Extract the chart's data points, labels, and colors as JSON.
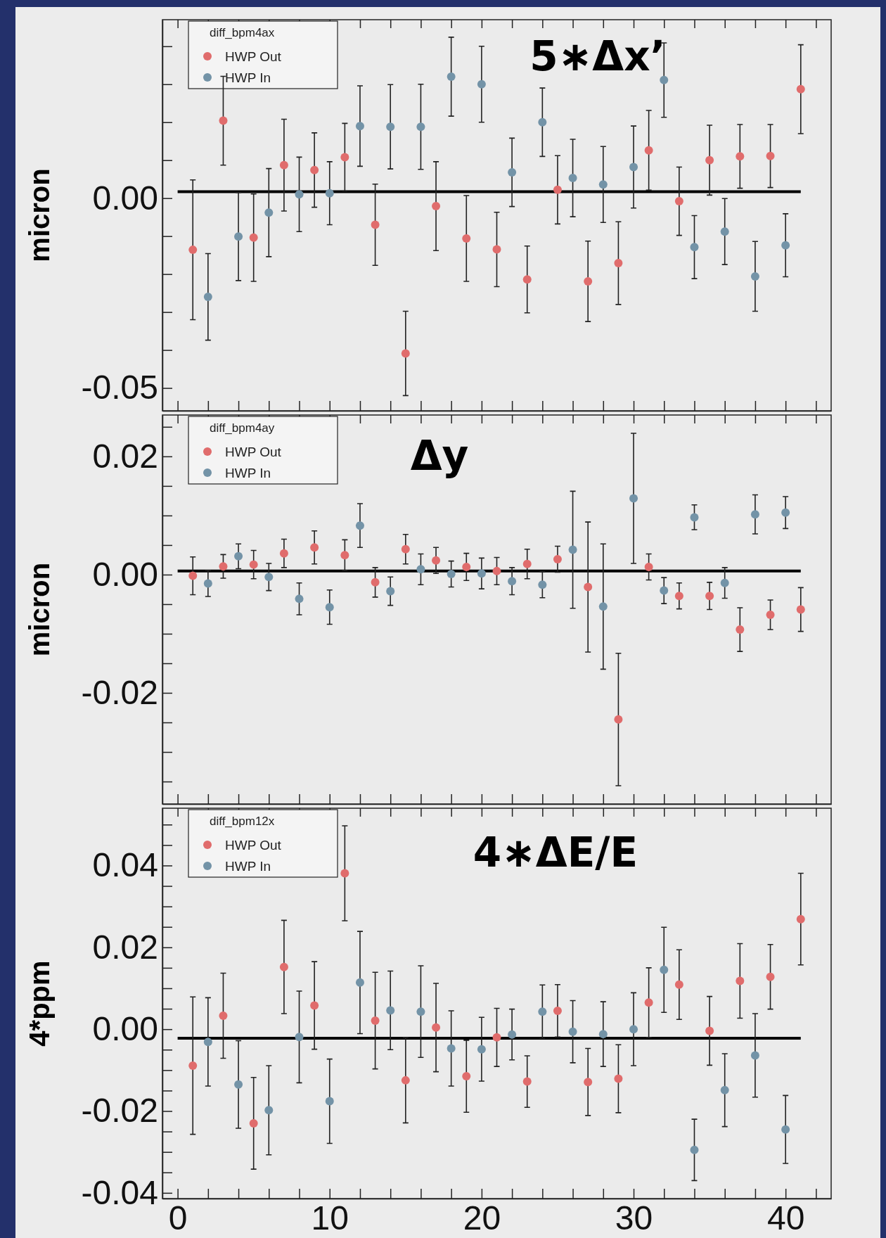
{
  "chart_data": [
    {
      "type": "scatter",
      "title": "5∗Δx’",
      "ylabel": "micron",
      "legend_title": "diff_bpm4ax",
      "legend": "top left",
      "marker": "circle",
      "grid": false,
      "tick_labels": "y",
      "xlim": [
        -1,
        43
      ],
      "ylim": [
        -0.056,
        0.047
      ],
      "xticks": [
        {
          "value": 0,
          "label": null
        },
        {
          "value": 2,
          "label": null
        },
        {
          "value": 4,
          "label": null
        },
        {
          "value": 6,
          "label": null
        },
        {
          "value": 8,
          "label": null
        },
        {
          "value": 10,
          "label": null
        },
        {
          "value": 12,
          "label": null
        },
        {
          "value": 14,
          "label": null
        },
        {
          "value": 16,
          "label": null
        },
        {
          "value": 18,
          "label": null
        },
        {
          "value": 20,
          "label": null
        },
        {
          "value": 22,
          "label": null
        },
        {
          "value": 24,
          "label": null
        },
        {
          "value": 26,
          "label": null
        },
        {
          "value": 28,
          "label": null
        },
        {
          "value": 30,
          "label": null
        },
        {
          "value": 32,
          "label": null
        },
        {
          "value": 34,
          "label": null
        },
        {
          "value": 36,
          "label": null
        },
        {
          "value": 38,
          "label": null
        },
        {
          "value": 40,
          "label": null
        },
        {
          "value": 42,
          "label": null
        }
      ],
      "yticks": [
        {
          "value": -0.05,
          "label": "-0.05"
        },
        {
          "value": -0.04,
          "label": null
        },
        {
          "value": -0.03,
          "label": null
        },
        {
          "value": -0.02,
          "label": null
        },
        {
          "value": -0.01,
          "label": null
        },
        {
          "value": 0,
          "label": "0.00"
        },
        {
          "value": 0.01,
          "label": null
        },
        {
          "value": 0.02,
          "label": null
        },
        {
          "value": 0.03,
          "label": null
        },
        {
          "value": 0.04,
          "label": null
        }
      ],
      "ref_lines": [
        {
          "axis": "y",
          "value": 0.0017,
          "color": "#000000"
        }
      ],
      "series": [
        {
          "name": "HWP Out",
          "color": "#e06c6c",
          "x": [
            1,
            3,
            5,
            7,
            9,
            11,
            13,
            15,
            17,
            19,
            21,
            23,
            25,
            27,
            29,
            31,
            33,
            35,
            37,
            39,
            41
          ],
          "values": [
            -0.0136,
            0.0204,
            -0.0104,
            0.0087,
            0.0074,
            0.0108,
            -0.007,
            -0.0409,
            -0.0021,
            -0.0106,
            -0.0135,
            -0.0214,
            0.0022,
            -0.0219,
            -0.0171,
            0.0126,
            -0.0008,
            0.01,
            0.011,
            0.0111,
            0.0287
          ],
          "errors": [
            0.0184,
            0.0117,
            0.0115,
            0.0121,
            0.0098,
            0.0089,
            0.0107,
            0.0111,
            0.0117,
            0.0113,
            0.0098,
            0.0088,
            0.009,
            0.0106,
            0.0109,
            0.0105,
            0.009,
            0.0092,
            0.0084,
            0.0083,
            0.0117
          ]
        },
        {
          "name": "HWP In",
          "color": "#7393a7",
          "x": [
            2,
            4,
            6,
            8,
            10,
            12,
            14,
            16,
            18,
            20,
            22,
            24,
            26,
            28,
            30,
            32,
            34,
            36,
            38,
            40
          ],
          "values": [
            -0.026,
            -0.0101,
            -0.0038,
            0.001,
            0.0013,
            0.019,
            0.0188,
            0.0188,
            0.032,
            0.03,
            0.0068,
            0.02,
            0.0053,
            0.0036,
            0.0082,
            0.0311,
            -0.0129,
            -0.0088,
            -0.0206,
            -0.0124
          ],
          "errors": [
            0.0114,
            0.0116,
            0.0116,
            0.0098,
            0.0083,
            0.0106,
            0.0111,
            0.0112,
            0.0104,
            0.01,
            0.009,
            0.009,
            0.0102,
            0.01,
            0.0108,
            0.0098,
            0.0083,
            0.0087,
            0.0092,
            0.0083
          ]
        }
      ]
    },
    {
      "type": "scatter",
      "title": "Δy",
      "ylabel": "micron",
      "legend_title": "diff_bpm4ay",
      "legend": "top left",
      "marker": "circle",
      "grid": false,
      "tick_labels": "y",
      "xlim": [
        -1,
        43
      ],
      "ylim": [
        -0.0388,
        0.027
      ],
      "xticks": [
        {
          "value": 0,
          "label": null
        },
        {
          "value": 2,
          "label": null
        },
        {
          "value": 4,
          "label": null
        },
        {
          "value": 6,
          "label": null
        },
        {
          "value": 8,
          "label": null
        },
        {
          "value": 10,
          "label": null
        },
        {
          "value": 12,
          "label": null
        },
        {
          "value": 14,
          "label": null
        },
        {
          "value": 16,
          "label": null
        },
        {
          "value": 18,
          "label": null
        },
        {
          "value": 20,
          "label": null
        },
        {
          "value": 22,
          "label": null
        },
        {
          "value": 24,
          "label": null
        },
        {
          "value": 26,
          "label": null
        },
        {
          "value": 28,
          "label": null
        },
        {
          "value": 30,
          "label": null
        },
        {
          "value": 32,
          "label": null
        },
        {
          "value": 34,
          "label": null
        },
        {
          "value": 36,
          "label": null
        },
        {
          "value": 38,
          "label": null
        },
        {
          "value": 40,
          "label": null
        },
        {
          "value": 42,
          "label": null
        }
      ],
      "yticks": [
        {
          "value": -0.035,
          "label": null
        },
        {
          "value": -0.03,
          "label": null
        },
        {
          "value": -0.025,
          "label": null
        },
        {
          "value": -0.02,
          "label": "-0.02"
        },
        {
          "value": -0.015,
          "label": null
        },
        {
          "value": -0.01,
          "label": null
        },
        {
          "value": -0.005,
          "label": null
        },
        {
          "value": 0,
          "label": "0.00"
        },
        {
          "value": 0.005,
          "label": null
        },
        {
          "value": 0.01,
          "label": null
        },
        {
          "value": 0.015,
          "label": null
        },
        {
          "value": 0.02,
          "label": "0.02"
        },
        {
          "value": 0.025,
          "label": null
        }
      ],
      "ref_lines": [
        {
          "axis": "y",
          "value": 0.0006,
          "color": "#000000"
        }
      ],
      "series": [
        {
          "name": "HWP Out",
          "color": "#e06c6c",
          "x": [
            1,
            3,
            5,
            7,
            9,
            11,
            13,
            15,
            17,
            19,
            21,
            23,
            25,
            27,
            29,
            31,
            33,
            35,
            37,
            39,
            41
          ],
          "values": [
            -0.0002,
            0.0014,
            0.0017,
            0.0036,
            0.0046,
            0.0033,
            -0.0013,
            0.0043,
            0.0024,
            0.0013,
            0.0006,
            0.0018,
            0.0026,
            -0.0021,
            -0.0245,
            0.0013,
            -0.0036,
            -0.0036,
            -0.0093,
            -0.0068,
            -0.0059
          ],
          "errors": [
            0.0032,
            0.002,
            0.0024,
            0.0024,
            0.0028,
            0.0026,
            0.0025,
            0.0025,
            0.0022,
            0.0023,
            0.0023,
            0.0025,
            0.0022,
            0.011,
            0.0112,
            0.0022,
            0.0022,
            0.0023,
            0.0037,
            0.0025,
            0.0037
          ]
        },
        {
          "name": "HWP In",
          "color": "#7393a7",
          "x": [
            2,
            4,
            6,
            8,
            10,
            12,
            14,
            16,
            18,
            20,
            22,
            24,
            26,
            28,
            30,
            32,
            34,
            36,
            38,
            40
          ],
          "values": [
            -0.0015,
            0.0031,
            -0.0004,
            -0.0041,
            -0.0055,
            0.0083,
            -0.0028,
            0.0009,
            0.0001,
            0.0002,
            -0.0011,
            -0.0017,
            0.0042,
            -0.0054,
            0.0129,
            -0.0027,
            0.0097,
            -0.0014,
            0.0102,
            0.0105
          ],
          "errors": [
            0.0022,
            0.0021,
            0.0023,
            0.0027,
            0.0029,
            0.0037,
            0.0024,
            0.0026,
            0.0022,
            0.0026,
            0.0023,
            0.0022,
            0.0099,
            0.0106,
            0.011,
            0.0022,
            0.0021,
            0.0026,
            0.0033,
            0.0027
          ]
        }
      ]
    },
    {
      "type": "scatter",
      "title": "4∗ΔE/E",
      "ylabel": "4*ppm",
      "legend_title": "diff_bpm12x",
      "legend": "top left",
      "marker": "circle",
      "grid": false,
      "xlim": [
        -1,
        43
      ],
      "ylim": [
        -0.0414,
        0.054
      ],
      "xticks": [
        0,
        {
          "value": 2,
          "label": null
        },
        {
          "value": 4,
          "label": null
        },
        {
          "value": 6,
          "label": null
        },
        {
          "value": 8,
          "label": null
        },
        10,
        {
          "value": 12,
          "label": null
        },
        {
          "value": 14,
          "label": null
        },
        {
          "value": 16,
          "label": null
        },
        {
          "value": 18,
          "label": null
        },
        20,
        {
          "value": 22,
          "label": null
        },
        {
          "value": 24,
          "label": null
        },
        {
          "value": 26,
          "label": null
        },
        {
          "value": 28,
          "label": null
        },
        30,
        {
          "value": 32,
          "label": null
        },
        {
          "value": 34,
          "label": null
        },
        {
          "value": 36,
          "label": null
        },
        {
          "value": 38,
          "label": null
        },
        40,
        {
          "value": 42,
          "label": null
        }
      ],
      "yticks": [
        {
          "value": -0.04,
          "label": "-0.04"
        },
        {
          "value": -0.035,
          "label": null
        },
        {
          "value": -0.03,
          "label": null
        },
        {
          "value": -0.025,
          "label": null
        },
        {
          "value": -0.02,
          "label": "-0.02"
        },
        {
          "value": -0.015,
          "label": null
        },
        {
          "value": -0.01,
          "label": null
        },
        {
          "value": -0.005,
          "label": null
        },
        {
          "value": 0,
          "label": "0.00"
        },
        {
          "value": 0.005,
          "label": null
        },
        {
          "value": 0.01,
          "label": null
        },
        {
          "value": 0.015,
          "label": null
        },
        {
          "value": 0.02,
          "label": "0.02"
        },
        {
          "value": 0.025,
          "label": null
        },
        {
          "value": 0.03,
          "label": null
        },
        {
          "value": 0.035,
          "label": null
        },
        {
          "value": 0.04,
          "label": "0.04"
        },
        {
          "value": 0.045,
          "label": null
        },
        {
          "value": 0.05,
          "label": null
        }
      ],
      "ref_lines": [
        {
          "axis": "y",
          "value": -0.0022,
          "color": "#000000"
        }
      ],
      "series": [
        {
          "name": "HWP Out",
          "color": "#e06c6c",
          "x": [
            1,
            3,
            5,
            7,
            9,
            11,
            13,
            15,
            17,
            19,
            21,
            23,
            25,
            27,
            29,
            31,
            33,
            35,
            37,
            39,
            41
          ],
          "values": [
            -0.0089,
            0.0033,
            -0.023,
            0.0152,
            0.0058,
            0.0381,
            0.0021,
            -0.0125,
            0.0004,
            -0.0115,
            -0.002,
            -0.0128,
            0.0045,
            -0.0129,
            -0.0121,
            0.0065,
            0.0109,
            -0.0004,
            0.0118,
            0.0128,
            0.0269
          ],
          "errors": [
            0.0168,
            0.0104,
            0.0112,
            0.0114,
            0.0107,
            0.0116,
            0.0118,
            0.0104,
            0.0108,
            0.0088,
            0.0071,
            0.0063,
            0.0064,
            0.0082,
            0.0083,
            0.0085,
            0.0085,
            0.0084,
            0.0091,
            0.0079,
            0.0112
          ]
        },
        {
          "name": "HWP In",
          "color": "#7393a7",
          "x": [
            2,
            4,
            6,
            8,
            10,
            12,
            14,
            16,
            18,
            20,
            22,
            24,
            26,
            28,
            30,
            32,
            34,
            36,
            38,
            40
          ],
          "values": [
            -0.0031,
            -0.0135,
            -0.0198,
            -0.0019,
            -0.0176,
            0.0114,
            0.0046,
            0.0043,
            -0.0047,
            -0.0049,
            -0.0013,
            0.0043,
            -0.0006,
            -0.0012,
            0.0,
            0.0145,
            -0.0295,
            -0.0149,
            -0.0064,
            -0.0245
          ],
          "errors": [
            0.0108,
            0.0107,
            0.0109,
            0.0112,
            0.0103,
            0.0125,
            0.0096,
            0.0112,
            0.0092,
            0.0078,
            0.0062,
            0.0065,
            0.0076,
            0.0079,
            0.0089,
            0.0104,
            0.0075,
            0.0089,
            0.0102,
            0.0083
          ]
        }
      ]
    }
  ]
}
